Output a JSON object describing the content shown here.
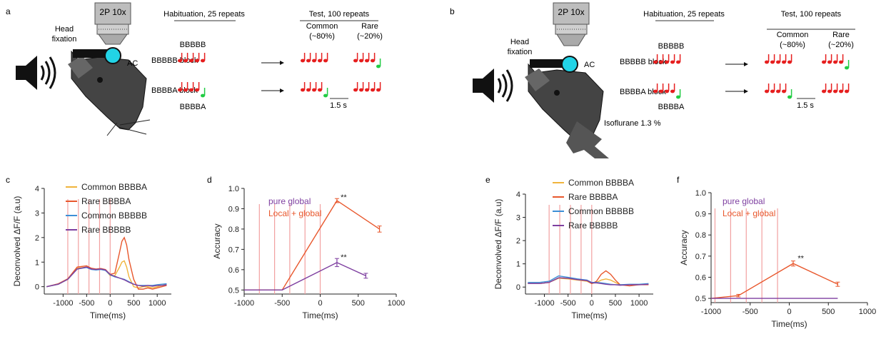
{
  "panels": {
    "a": {
      "label": "a",
      "microscope": "2P 10x",
      "head_fixation": [
        "Head",
        "fixation"
      ],
      "ac": "AC",
      "habituation": "Habituation, 25 repeats",
      "test": "Test, 100 repeats",
      "common": [
        "Common",
        "(~80%)"
      ],
      "rare": [
        "Rare",
        "(~20%)"
      ],
      "block1": "BBBBB block",
      "block2": "BBBBA block",
      "seq1": "BBBBB",
      "seq2": "BBBBA",
      "interval": "1.5 s"
    },
    "b": {
      "label": "b",
      "microscope": "2P 10x",
      "head_fixation": [
        "Head",
        "fixation"
      ],
      "ac": "AC",
      "habituation": "Habituation, 25 repeats",
      "test": "Test, 100 repeats",
      "common": [
        "Common",
        "(~80%)"
      ],
      "rare": [
        "Rare",
        "(~20%)"
      ],
      "block1": "BBBBB block",
      "block2": "BBBBA block",
      "seq1": "BBBBB",
      "seq2": "BBBBA",
      "interval": "1.5 s",
      "anesthetic": "Isoflurane 1.3 %"
    }
  },
  "colors": {
    "common_bbbba": "#f0b43c",
    "rare_bbbba": "#e8572c",
    "common_bbbbb": "#3c8fd6",
    "rare_bbbbb": "#7e3fa0",
    "stim_line": "#f2a0a0",
    "note_red": "#e61e1e",
    "note_green": "#22cc44",
    "cyan": "#22d3e6"
  },
  "chart_data": [
    {
      "panel": "c",
      "type": "line",
      "xlabel": "Time(ms)",
      "ylabel": "Deconvolved ΔF/F (a.u)",
      "xlim": [
        -1400,
        1300
      ],
      "ylim": [
        -0.3,
        4
      ],
      "xticks": [
        -1000,
        -500,
        0,
        500,
        1000
      ],
      "yticks": [
        0,
        1,
        2,
        3,
        4
      ],
      "stim_lines": [
        -900,
        -675,
        -450,
        -225,
        0
      ],
      "legend": [
        "Common BBBBA",
        "Rare BBBBA",
        "Common BBBBB",
        "Rare BBBBB"
      ],
      "series": [
        {
          "name": "Common BBBBA",
          "x": [
            -1350,
            -1100,
            -900,
            -700,
            -500,
            -400,
            -300,
            -200,
            -100,
            0,
            100,
            200,
            250,
            300,
            350,
            400,
            500,
            600,
            700,
            800,
            900,
            1000,
            1100,
            1200
          ],
          "y": [
            0,
            0.1,
            0.3,
            0.75,
            0.8,
            0.72,
            0.7,
            0.72,
            0.68,
            0.45,
            0.45,
            0.8,
            1.0,
            1.05,
            0.8,
            0.4,
            0.0,
            -0.05,
            0.0,
            0.0,
            -0.05,
            0.0,
            0.05,
            0.1
          ]
        },
        {
          "name": "Rare BBBBA",
          "x": [
            -1350,
            -1100,
            -900,
            -700,
            -500,
            -400,
            -300,
            -200,
            -100,
            0,
            100,
            200,
            250,
            300,
            350,
            400,
            500,
            600,
            700,
            800,
            900,
            1000,
            1100,
            1200
          ],
          "y": [
            0,
            0.12,
            0.32,
            0.8,
            0.85,
            0.75,
            0.72,
            0.74,
            0.7,
            0.5,
            0.55,
            1.4,
            1.85,
            2.0,
            1.7,
            1.1,
            0.3,
            -0.1,
            -0.1,
            -0.05,
            -0.1,
            -0.05,
            0.0,
            0.05
          ]
        },
        {
          "name": "Common BBBBB",
          "x": [
            -1350,
            -1100,
            -900,
            -700,
            -500,
            -400,
            -300,
            -200,
            -100,
            0,
            100,
            200,
            300,
            400,
            500,
            600,
            700,
            800,
            900,
            1000,
            1100,
            1200
          ],
          "y": [
            0,
            0.1,
            0.3,
            0.72,
            0.78,
            0.7,
            0.68,
            0.7,
            0.66,
            0.48,
            0.4,
            0.35,
            0.3,
            0.2,
            0.1,
            0.05,
            0.05,
            0.05,
            0.05,
            0.08,
            0.1,
            0.12
          ]
        },
        {
          "name": "Rare BBBBB",
          "x": [
            -1350,
            -1100,
            -900,
            -700,
            -500,
            -400,
            -300,
            -200,
            -100,
            0,
            100,
            200,
            300,
            400,
            500,
            600,
            700,
            800,
            900,
            1000,
            1100,
            1200
          ],
          "y": [
            0,
            0.1,
            0.3,
            0.72,
            0.8,
            0.72,
            0.7,
            0.72,
            0.68,
            0.5,
            0.42,
            0.35,
            0.28,
            0.18,
            0.1,
            0.05,
            0.02,
            0.05,
            0.02,
            0.05,
            0.05,
            0.08
          ]
        }
      ]
    },
    {
      "panel": "d",
      "type": "line",
      "xlabel": "Time(ms)",
      "ylabel": "Accuracy",
      "xlim": [
        -1000,
        1000
      ],
      "ylim": [
        0.48,
        1.0
      ],
      "xticks": [
        -1000,
        -500,
        0,
        500,
        1000
      ],
      "yticks": [
        0.5,
        0.6,
        0.7,
        0.8,
        0.9,
        1.0
      ],
      "stim_lines": [
        -800,
        -600,
        -400,
        -200,
        0
      ],
      "legend": [
        "pure global",
        "Local + global"
      ],
      "series": [
        {
          "name": "Local + global",
          "x": [
            -1000,
            -500,
            220,
            780
          ],
          "y": [
            0.5,
            0.5,
            0.94,
            0.8
          ],
          "err": [
            0,
            0,
            0.01,
            0.015
          ]
        },
        {
          "name": "pure global",
          "x": [
            -1000,
            -500,
            220,
            600
          ],
          "y": [
            0.5,
            0.5,
            0.635,
            0.57
          ],
          "err": [
            0,
            0,
            0.02,
            0.012
          ]
        }
      ],
      "annotations": [
        {
          "text": "**",
          "x": 250,
          "y": 0.95
        },
        {
          "text": "**",
          "x": 250,
          "y": 0.655
        }
      ]
    },
    {
      "panel": "e",
      "type": "line",
      "xlabel": "Time(ms)",
      "ylabel": "Deconvolved ΔF/F (a.u)",
      "xlim": [
        -1400,
        1300
      ],
      "ylim": [
        -0.3,
        4
      ],
      "xticks": [
        -1000,
        -500,
        0,
        500,
        1000
      ],
      "yticks": [
        0,
        1,
        2,
        3,
        4
      ],
      "stim_lines": [
        -900,
        -675,
        -450,
        -225,
        0
      ],
      "legend": [
        "Common BBBBA",
        "Rare BBBBA",
        "Common BBBBB",
        "Rare BBBBB"
      ],
      "series": [
        {
          "name": "Common BBBBA",
          "x": [
            -1350,
            -1100,
            -900,
            -700,
            -500,
            -300,
            -100,
            0,
            100,
            200,
            300,
            400,
            500,
            600,
            800,
            1000,
            1200
          ],
          "y": [
            0.15,
            0.15,
            0.2,
            0.38,
            0.35,
            0.3,
            0.25,
            0.15,
            0.2,
            0.3,
            0.35,
            0.3,
            0.2,
            0.1,
            0.1,
            0.1,
            0.12
          ]
        },
        {
          "name": "Rare BBBBA",
          "x": [
            -1350,
            -1100,
            -900,
            -700,
            -500,
            -300,
            -100,
            0,
            100,
            200,
            300,
            400,
            500,
            600,
            800,
            1000,
            1200
          ],
          "y": [
            0.15,
            0.15,
            0.2,
            0.4,
            0.38,
            0.32,
            0.28,
            0.15,
            0.25,
            0.55,
            0.7,
            0.55,
            0.3,
            0.1,
            0.05,
            0.1,
            0.1
          ]
        },
        {
          "name": "Common BBBBB",
          "x": [
            -1350,
            -1100,
            -900,
            -700,
            -500,
            -300,
            -100,
            0,
            100,
            200,
            300,
            400,
            500,
            600,
            800,
            1000,
            1200
          ],
          "y": [
            0.2,
            0.2,
            0.25,
            0.48,
            0.42,
            0.35,
            0.3,
            0.2,
            0.2,
            0.18,
            0.15,
            0.12,
            0.1,
            0.1,
            0.12,
            0.12,
            0.15
          ]
        },
        {
          "name": "Rare BBBBB",
          "x": [
            -1350,
            -1100,
            -900,
            -700,
            -500,
            -300,
            -100,
            0,
            100,
            200,
            300,
            400,
            500,
            600,
            800,
            1000,
            1200
          ],
          "y": [
            0.15,
            0.15,
            0.2,
            0.4,
            0.38,
            0.32,
            0.28,
            0.18,
            0.18,
            0.15,
            0.12,
            0.1,
            0.1,
            0.08,
            0.1,
            0.1,
            0.12
          ]
        }
      ]
    },
    {
      "panel": "f",
      "type": "line",
      "xlabel": "Time(ms)",
      "ylabel": "Accuracy",
      "xlim": [
        -1000,
        1000
      ],
      "ylim": [
        0.48,
        1.0
      ],
      "xticks": [
        -1000,
        -500,
        0,
        500,
        1000
      ],
      "yticks": [
        0.5,
        0.6,
        0.7,
        0.8,
        0.9,
        1.0
      ],
      "stim_lines": [
        -950,
        -750,
        -550,
        -350,
        -150
      ],
      "legend": [
        "pure global",
        "Local + global"
      ],
      "series": [
        {
          "name": "Local + global",
          "x": [
            -1000,
            -650,
            50,
            620
          ],
          "y": [
            0.5,
            0.513,
            0.665,
            0.567
          ],
          "err": [
            0,
            0.006,
            0.012,
            0.01
          ]
        },
        {
          "name": "pure global",
          "x": [
            -1000,
            -650,
            50,
            620
          ],
          "y": [
            0.5,
            0.5,
            0.5,
            0.5
          ],
          "err": [
            0,
            0,
            0,
            0
          ]
        }
      ],
      "annotations": [
        {
          "text": "**",
          "x": 90,
          "y": 0.685
        }
      ]
    }
  ]
}
